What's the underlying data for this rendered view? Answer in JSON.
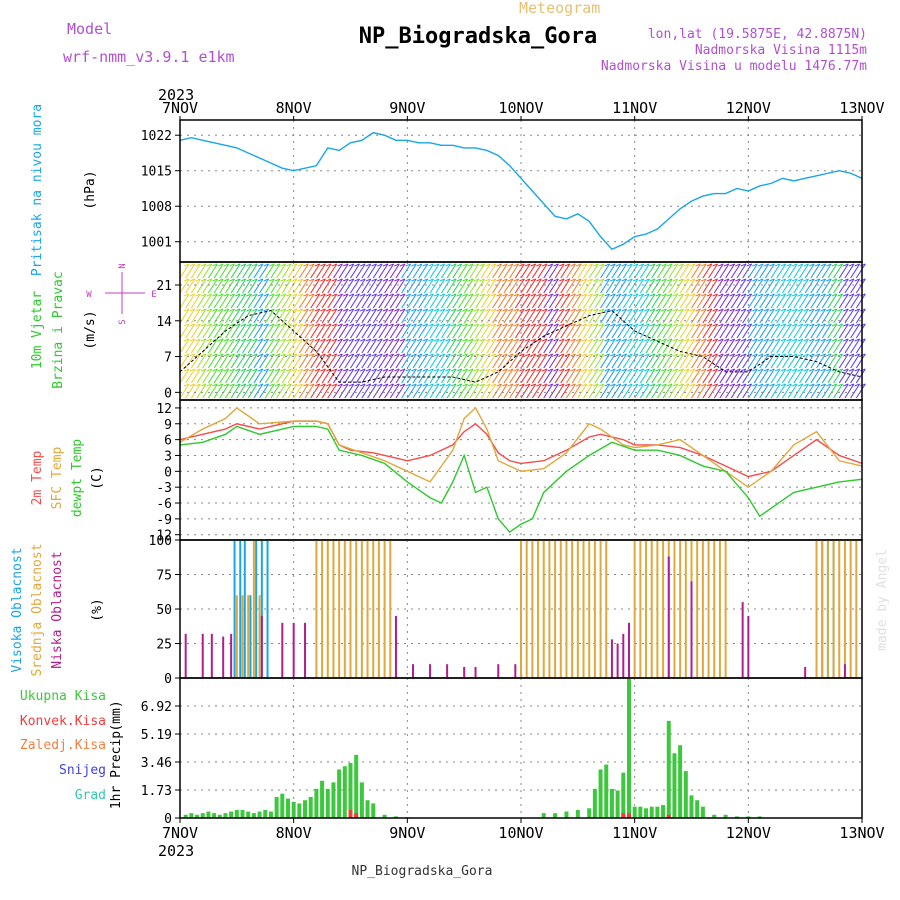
{
  "header": {
    "model_label": "Model",
    "model_name": "wrf-nmm_v3.9.1 e1km",
    "product": "Meteogram",
    "station": "NP_Biogradska_Gora",
    "lonlat": "lon,lat (19.5875E, 42.8875N)",
    "altitude": "Nadmorska Visina 1115m",
    "model_altitude": "Nadmorska Visina u modelu 1476.77m",
    "footer_station": "NP_Biogradska_Gora",
    "credit": "made by Angel"
  },
  "time_axis": {
    "year": "2023",
    "labels": [
      "7NOV",
      "8NOV",
      "9NOV",
      "10NOV",
      "11NOV",
      "12NOV",
      "13NOV"
    ]
  },
  "colors": {
    "pressure": "#19a6e6",
    "temp2m": "#f24d4d",
    "sfc_temp": "#e0a83c",
    "dewpt": "#2ec92e",
    "wind_speed": "#000000",
    "precip_total": "#3cc83c",
    "precip_conv": "#f03c3c",
    "cloud_high": "#19a6e6",
    "cloud_mid": "#e0a83c",
    "cloud_low": "#b01e8c",
    "wind_label": "#c040c0",
    "grid": "#888888"
  },
  "chart_data": [
    {
      "type": "line",
      "id": "pressure",
      "ylabel": "Pritisak na nivou mora",
      "unit": "(hPa)",
      "ylim": [
        997,
        1025
      ],
      "yticks": [
        1001,
        1008,
        1015,
        1022
      ],
      "grid": true,
      "series": [
        {
          "color_key": "pressure",
          "x": [
            0,
            0.1,
            0.2,
            0.3,
            0.4,
            0.5,
            0.6,
            0.7,
            0.8,
            0.9,
            1.0,
            1.1,
            1.2,
            1.3,
            1.4,
            1.5,
            1.6,
            1.7,
            1.8,
            1.9,
            2.0,
            2.1,
            2.2,
            2.3,
            2.4,
            2.5,
            2.6,
            2.7,
            2.8,
            2.9,
            3.0,
            3.1,
            3.2,
            3.3,
            3.4,
            3.5,
            3.6,
            3.7,
            3.8,
            3.9,
            4.0,
            4.1,
            4.2,
            4.3,
            4.4,
            4.5,
            4.6,
            4.7,
            4.8,
            4.9,
            5.0,
            5.1,
            5.2,
            5.3,
            5.4,
            5.5,
            5.6,
            5.7,
            5.8,
            5.9,
            6.0
          ],
          "y": [
            1021,
            1021.5,
            1021,
            1020.5,
            1020,
            1019.5,
            1018.5,
            1017.5,
            1016.5,
            1015.5,
            1015,
            1015.5,
            1016,
            1019.5,
            1019,
            1020.5,
            1021,
            1022.5,
            1022,
            1021,
            1021,
            1020.5,
            1020.5,
            1020,
            1020,
            1019.5,
            1019.5,
            1019,
            1018,
            1016,
            1013.5,
            1011,
            1008.5,
            1006,
            1005.5,
            1006.5,
            1005,
            1002,
            999.5,
            1000.5,
            1002,
            1002.5,
            1003.5,
            1005.5,
            1007.5,
            1009,
            1010,
            1010.5,
            1010.5,
            1011.5,
            1011,
            1012,
            1012.5,
            1013.5,
            1013,
            1013.5,
            1014,
            1014.5,
            1015,
            1014.5,
            1013.5
          ]
        }
      ]
    },
    {
      "type": "line",
      "id": "wind",
      "ylabel_lines": [
        "10m Vjetar",
        "Brzina i Pravac"
      ],
      "unit": "(m/s)",
      "compass": [
        "N",
        "E",
        "S",
        "W"
      ],
      "ylim": [
        -1.5,
        25.5
      ],
      "yticks": [
        0,
        7,
        14,
        21
      ],
      "grid": true,
      "series": [
        {
          "color_key": "wind_speed",
          "x": [
            0,
            0.2,
            0.4,
            0.6,
            0.8,
            1.0,
            1.2,
            1.4,
            1.6,
            1.8,
            2.0,
            2.2,
            2.4,
            2.6,
            2.8,
            3.0,
            3.2,
            3.4,
            3.6,
            3.8,
            4.0,
            4.2,
            4.4,
            4.6,
            4.8,
            5.0,
            5.2,
            5.4,
            5.6,
            5.8,
            6.0
          ],
          "y": [
            4,
            8,
            12,
            15,
            16,
            12,
            8,
            2,
            2,
            3,
            3,
            3,
            3,
            2,
            4,
            8,
            11,
            13,
            15,
            16,
            12,
            10,
            8,
            7,
            4,
            4,
            7,
            7,
            6,
            4,
            3
          ]
        }
      ]
    },
    {
      "type": "line",
      "id": "temperature",
      "ylabel_lines": [
        "2m Temp",
        "SFC Temp",
        "dewpt Temp"
      ],
      "unit": "(C)",
      "ylim": [
        -13,
        13.5
      ],
      "yticks": [
        -12,
        -9,
        -6,
        -3,
        0,
        3,
        6,
        9,
        12
      ],
      "grid": true,
      "series": [
        {
          "name": "2m Temp",
          "color_key": "temp2m",
          "x": [
            0,
            0.2,
            0.4,
            0.5,
            0.7,
            1.0,
            1.2,
            1.3,
            1.4,
            1.5,
            1.7,
            1.9,
            2.0,
            2.2,
            2.4,
            2.5,
            2.6,
            2.7,
            2.8,
            2.9,
            3.0,
            3.2,
            3.4,
            3.6,
            3.7,
            3.9,
            4.0,
            4.2,
            4.4,
            4.6,
            4.8,
            5.0,
            5.2,
            5.4,
            5.6,
            5.8,
            6.0
          ],
          "y": [
            6,
            7,
            8,
            9,
            8,
            9.5,
            9.5,
            9,
            5,
            4,
            3.5,
            2.5,
            2,
            3,
            5,
            7.5,
            9,
            7,
            3.5,
            2,
            1.5,
            2,
            4,
            6.5,
            7,
            6,
            5,
            5,
            4.5,
            3,
            1,
            -1,
            0,
            3,
            6,
            3,
            1.5
          ]
        },
        {
          "name": "SFC Temp",
          "color_key": "sfc_temp",
          "x": [
            0,
            0.2,
            0.4,
            0.5,
            0.7,
            1.0,
            1.2,
            1.3,
            1.4,
            1.6,
            1.8,
            2.0,
            2.2,
            2.4,
            2.5,
            2.6,
            2.7,
            2.8,
            3.0,
            3.2,
            3.4,
            3.6,
            3.7,
            3.9,
            4.0,
            4.2,
            4.4,
            4.6,
            4.8,
            5.0,
            5.2,
            5.4,
            5.6,
            5.8,
            6.0
          ],
          "y": [
            5.5,
            8,
            10,
            12,
            9,
            9.5,
            9.5,
            9,
            5,
            3.5,
            2,
            0,
            -2,
            4,
            10,
            12,
            8,
            2,
            0,
            0.5,
            3.5,
            9,
            8,
            5,
            4.5,
            5,
            6,
            3,
            0,
            -3,
            0,
            5,
            7.5,
            2,
            1
          ]
        },
        {
          "name": "dewpt Temp",
          "color_key": "dewpt",
          "x": [
            0,
            0.2,
            0.4,
            0.5,
            0.7,
            1.0,
            1.2,
            1.3,
            1.4,
            1.6,
            1.8,
            2.0,
            2.2,
            2.3,
            2.4,
            2.5,
            2.6,
            2.7,
            2.8,
            2.9,
            3.0,
            3.1,
            3.2,
            3.4,
            3.6,
            3.8,
            4.0,
            4.2,
            4.4,
            4.6,
            4.8,
            5.0,
            5.1,
            5.2,
            5.4,
            5.6,
            5.8,
            6.0
          ],
          "y": [
            5,
            5.5,
            7,
            8.5,
            7,
            8.5,
            8.5,
            8,
            4,
            3,
            1.5,
            -2,
            -5,
            -6,
            -2,
            3,
            -4,
            -3,
            -9,
            -11.5,
            -10,
            -9,
            -4,
            0,
            3,
            5.5,
            4,
            4,
            3,
            1,
            0,
            -5,
            -8.5,
            -7,
            -4,
            -3,
            -2,
            -1.5
          ]
        }
      ]
    },
    {
      "type": "bar",
      "id": "clouds",
      "ylabel_lines": [
        "Visoka Oblacnost",
        "Srednja Oblacnost",
        "Niska Oblacnost"
      ],
      "unit": "(%)",
      "ylim": [
        0,
        100
      ],
      "yticks": [
        0,
        25,
        50,
        75,
        100
      ],
      "grid": true,
      "series": [
        {
          "name": "Visoka Oblacnost",
          "color_key": "cloud_high",
          "x": [
            0.48,
            0.53,
            0.57,
            0.62,
            0.67,
            0.72,
            0.77,
            5.65,
            5.7,
            5.75
          ],
          "y": [
            100,
            100,
            100,
            60,
            100,
            100,
            100,
            100,
            100,
            100
          ]
        },
        {
          "name": "Srednja Oblacnost",
          "color_key": "cloud_mid",
          "x": [
            0.5,
            0.55,
            0.6,
            0.65,
            0.7,
            1.2,
            1.25,
            1.3,
            1.35,
            1.4,
            1.45,
            1.5,
            1.55,
            1.6,
            1.65,
            1.7,
            1.75,
            1.8,
            1.85,
            3.0,
            3.05,
            3.1,
            3.15,
            3.2,
            3.25,
            3.3,
            3.35,
            3.4,
            3.45,
            3.5,
            3.55,
            3.6,
            3.65,
            3.7,
            3.75,
            4.0,
            4.05,
            4.1,
            4.15,
            4.2,
            4.25,
            4.3,
            4.35,
            4.4,
            4.45,
            4.5,
            4.55,
            4.6,
            4.65,
            4.7,
            4.75,
            4.8,
            5.6,
            5.65,
            5.7,
            5.75,
            5.8,
            5.85,
            5.9,
            5.95
          ],
          "y": [
            60,
            60,
            60,
            100,
            60,
            100,
            100,
            100,
            100,
            100,
            100,
            100,
            100,
            100,
            100,
            100,
            100,
            100,
            100,
            100,
            100,
            100,
            100,
            100,
            100,
            100,
            100,
            100,
            100,
            100,
            100,
            100,
            100,
            100,
            100,
            100,
            100,
            100,
            100,
            100,
            100,
            100,
            100,
            100,
            100,
            100,
            100,
            100,
            100,
            100,
            100,
            100,
            100,
            100,
            100,
            100,
            100,
            100,
            100,
            100
          ]
        },
        {
          "name": "Niska Oblacnost",
          "color_key": "cloud_low",
          "x": [
            0.05,
            0.2,
            0.28,
            0.38,
            0.45,
            0.72,
            0.9,
            1.0,
            1.1,
            1.9,
            2.05,
            2.2,
            2.35,
            2.5,
            2.6,
            2.8,
            2.95,
            3.8,
            3.85,
            3.9,
            3.95,
            4.3,
            4.5,
            4.95,
            5.0,
            5.5,
            5.85
          ],
          "y": [
            32,
            32,
            32,
            30,
            32,
            45,
            40,
            40,
            40,
            45,
            10,
            10,
            10,
            8,
            8,
            10,
            10,
            28,
            25,
            32,
            40,
            88,
            70,
            55,
            45,
            8,
            10
          ]
        }
      ]
    },
    {
      "type": "bar",
      "id": "precip",
      "ylabel": "1hr Precip",
      "unit": "(mm)",
      "legend_lines": [
        "Ukupna Kisa",
        "Konvek.Kisa",
        "Zaledj.Kisa",
        "Snijeg",
        "Grad"
      ],
      "legend_color_keys": [
        "precip_total",
        "temp2m",
        "sfc_temp",
        "snow",
        "hail"
      ],
      "ylim": [
        0,
        8.65
      ],
      "yticks": [
        0,
        1.73,
        3.46,
        5.19,
        6.92
      ],
      "grid": true,
      "series": [
        {
          "name": "Ukupna Kisa",
          "color_key": "precip_total",
          "x": [
            0.05,
            0.1,
            0.15,
            0.2,
            0.25,
            0.3,
            0.35,
            0.4,
            0.45,
            0.5,
            0.55,
            0.6,
            0.65,
            0.7,
            0.75,
            0.8,
            0.85,
            0.9,
            0.95,
            1.0,
            1.05,
            1.1,
            1.15,
            1.2,
            1.25,
            1.3,
            1.35,
            1.4,
            1.45,
            1.5,
            1.55,
            1.6,
            1.65,
            1.7,
            1.8,
            1.9,
            2.0,
            3.2,
            3.3,
            3.4,
            3.5,
            3.6,
            3.65,
            3.7,
            3.75,
            3.8,
            3.85,
            3.9,
            3.95,
            4.0,
            4.05,
            4.1,
            4.15,
            4.2,
            4.25,
            4.3,
            4.35,
            4.4,
            4.45,
            4.5,
            4.55,
            4.6,
            4.7,
            4.8,
            4.9,
            5.0,
            5.1
          ],
          "y": [
            0.2,
            0.3,
            0.2,
            0.3,
            0.4,
            0.3,
            0.2,
            0.3,
            0.4,
            0.5,
            0.5,
            0.4,
            0.3,
            0.4,
            0.5,
            0.4,
            1.3,
            1.5,
            1.2,
            1.0,
            0.9,
            1.1,
            1.3,
            1.8,
            2.3,
            1.8,
            2.2,
            3.0,
            3.2,
            3.4,
            3.9,
            2.2,
            1.1,
            0.9,
            0.2,
            0.1,
            0.05,
            0.3,
            0.3,
            0.4,
            0.5,
            0.6,
            1.8,
            3.0,
            3.3,
            1.8,
            1.7,
            2.8,
            8.6,
            0.7,
            0.7,
            0.6,
            0.7,
            0.7,
            0.8,
            6.0,
            4.0,
            4.5,
            2.9,
            1.4,
            1.1,
            0.7,
            0.2,
            0.2,
            0.1,
            0.1,
            0.1
          ]
        },
        {
          "name": "Konvek.Kisa",
          "color_key": "precip_conv",
          "x": [
            1.5,
            1.55,
            3.9,
            3.95,
            4.3
          ],
          "y": [
            0.5,
            0.3,
            0.3,
            0.3,
            0.2
          ]
        }
      ]
    }
  ]
}
